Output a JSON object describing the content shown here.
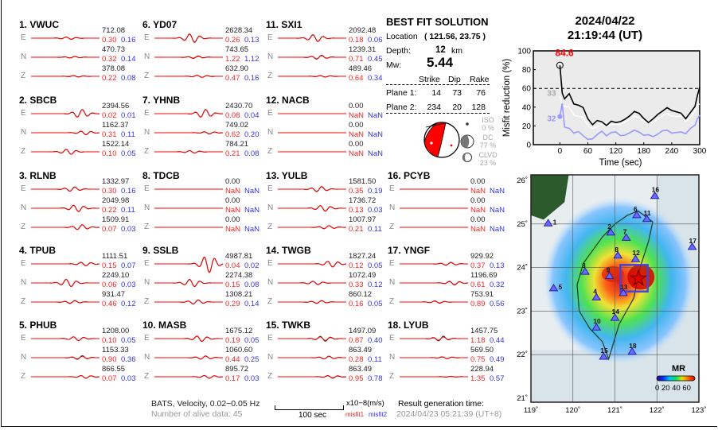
{
  "stations": [
    {
      "title": "1.  VWUC",
      "comps": [
        {
          "c": "E",
          "amp": "712.08",
          "m1": "0.30",
          "m2": "0.16"
        },
        {
          "c": "N",
          "amp": "470.73",
          "m1": "0.32",
          "m2": "0.14"
        },
        {
          "c": "Z",
          "amp": "378.08",
          "m1": "0.22",
          "m2": "0.08"
        }
      ]
    },
    {
      "title": "2.  SBCB",
      "comps": [
        {
          "c": "E",
          "amp": "2394.56",
          "m1": "0.02",
          "m2": "0.01"
        },
        {
          "c": "N",
          "amp": "1162.37",
          "m1": "0.31",
          "m2": "0.11"
        },
        {
          "c": "Z",
          "amp": "1522.14",
          "m1": "0.10",
          "m2": "0.05"
        }
      ]
    },
    {
      "title": "3.  RLNB",
      "comps": [
        {
          "c": "E",
          "amp": "1332.97",
          "m1": "0.30",
          "m2": "0.16"
        },
        {
          "c": "N",
          "amp": "2049.98",
          "m1": "0.22",
          "m2": "0.11"
        },
        {
          "c": "Z",
          "amp": "1509.91",
          "m1": "0.07",
          "m2": "0.03"
        }
      ]
    },
    {
      "title": "4.  TPUB",
      "comps": [
        {
          "c": "E",
          "amp": "1111.51",
          "m1": "0.15",
          "m2": "0.07"
        },
        {
          "c": "N",
          "amp": "2249.10",
          "m1": "0.06",
          "m2": "0.03"
        },
        {
          "c": "Z",
          "amp": "931.47",
          "m1": "0.46",
          "m2": "0.12"
        }
      ]
    },
    {
      "title": "5.  PHUB",
      "comps": [
        {
          "c": "E",
          "amp": "1208.00",
          "m1": "0.10",
          "m2": "0.05"
        },
        {
          "c": "N",
          "amp": "1153.33",
          "m1": "0.90",
          "m2": "0.36"
        },
        {
          "c": "Z",
          "amp": "866.55",
          "m1": "0.07",
          "m2": "0.03"
        }
      ]
    },
    {
      "title": "6.  YD07",
      "comps": [
        {
          "c": "E",
          "amp": "2628.34",
          "m1": "0.26",
          "m2": "0.13"
        },
        {
          "c": "N",
          "amp": "743.65",
          "m1": "1.22",
          "m2": "1.12"
        },
        {
          "c": "Z",
          "amp": "632.90",
          "m1": "0.47",
          "m2": "0.16"
        }
      ]
    },
    {
      "title": "7.  YHNB",
      "comps": [
        {
          "c": "E",
          "amp": "2430.70",
          "m1": "0.08",
          "m2": "0.04"
        },
        {
          "c": "N",
          "amp": "749.02",
          "m1": "0.62",
          "m2": "0.20"
        },
        {
          "c": "Z",
          "amp": "784.21",
          "m1": "0.21",
          "m2": "0.08"
        }
      ]
    },
    {
      "title": "8.  TDCB",
      "comps": [
        {
          "c": "E",
          "amp": "0.00",
          "m1": "NaN",
          "m2": "NaN"
        },
        {
          "c": "N",
          "amp": "0.00",
          "m1": "NaN",
          "m2": "NaN"
        },
        {
          "c": "Z",
          "amp": "0.00",
          "m1": "NaN",
          "m2": "NaN"
        }
      ]
    },
    {
      "title": "9.  SSLB",
      "comps": [
        {
          "c": "E",
          "amp": "4987.81",
          "m1": "0.04",
          "m2": "0.02"
        },
        {
          "c": "N",
          "amp": "2274.38",
          "m1": "0.15",
          "m2": "0.08"
        },
        {
          "c": "Z",
          "amp": "1308.21",
          "m1": "0.29",
          "m2": "0.14"
        }
      ]
    },
    {
      "title": "10. MASB",
      "comps": [
        {
          "c": "E",
          "amp": "1675.12",
          "m1": "0.19",
          "m2": "0.05"
        },
        {
          "c": "N",
          "amp": "1060.60",
          "m1": "0.44",
          "m2": "0.25"
        },
        {
          "c": "Z",
          "amp": "895.72",
          "m1": "0.17",
          "m2": "0.03"
        }
      ]
    },
    {
      "title": "11. SXI1",
      "comps": [
        {
          "c": "E",
          "amp": "2092.48",
          "m1": "0.18",
          "m2": "0.06"
        },
        {
          "c": "N",
          "amp": "1239.31",
          "m1": "0.71",
          "m2": "0.45"
        },
        {
          "c": "Z",
          "amp": "489.46",
          "m1": "0.64",
          "m2": "0.34"
        }
      ]
    },
    {
      "title": "12. NACB",
      "comps": [
        {
          "c": "E",
          "amp": "0.00",
          "m1": "NaN",
          "m2": "NaN"
        },
        {
          "c": "N",
          "amp": "0.00",
          "m1": "NaN",
          "m2": "NaN"
        },
        {
          "c": "Z",
          "amp": "0.00",
          "m1": "NaN",
          "m2": "NaN"
        }
      ]
    },
    {
      "title": "13. YULB",
      "comps": [
        {
          "c": "E",
          "amp": "1581.50",
          "m1": "0.35",
          "m2": "0.19"
        },
        {
          "c": "N",
          "amp": "1736.72",
          "m1": "0.13",
          "m2": "0.03"
        },
        {
          "c": "Z",
          "amp": "1007.97",
          "m1": "0.21",
          "m2": "0.11"
        }
      ]
    },
    {
      "title": "14. TWGB",
      "comps": [
        {
          "c": "E",
          "amp": "1827.24",
          "m1": "0.12",
          "m2": "0.05"
        },
        {
          "c": "N",
          "amp": "1072.49",
          "m1": "0.33",
          "m2": "0.12"
        },
        {
          "c": "Z",
          "amp": "860.12",
          "m1": "0.16",
          "m2": "0.05"
        }
      ]
    },
    {
      "title": "15. TWKB",
      "comps": [
        {
          "c": "E",
          "amp": "1497.09",
          "m1": "0.87",
          "m2": "0.40"
        },
        {
          "c": "N",
          "amp": "863.49",
          "m1": "0.28",
          "m2": "0.11"
        },
        {
          "c": "Z",
          "amp": "863.49",
          "m1": "0.95",
          "m2": "0.78"
        }
      ]
    },
    {
      "title": "16. PCYB",
      "comps": [
        {
          "c": "E",
          "amp": "0.00",
          "m1": "NaN",
          "m2": "NaN"
        },
        {
          "c": "N",
          "amp": "0.00",
          "m1": "NaN",
          "m2": "NaN"
        },
        {
          "c": "Z",
          "amp": "0.00",
          "m1": "NaN",
          "m2": "NaN"
        }
      ]
    },
    {
      "title": "17. YNGF",
      "comps": [
        {
          "c": "E",
          "amp": "929.92",
          "m1": "0.37",
          "m2": "0.13"
        },
        {
          "c": "N",
          "amp": "1196.69",
          "m1": "0.61",
          "m2": "0.32"
        },
        {
          "c": "Z",
          "amp": "753.91",
          "m1": "0.89",
          "m2": "0.56"
        }
      ]
    },
    {
      "title": "18. LYUB",
      "comps": [
        {
          "c": "E",
          "amp": "1457.75",
          "m1": "1.18",
          "m2": "0.44"
        },
        {
          "c": "N",
          "amp": "569.50",
          "m1": "0.75",
          "m2": "0.49"
        },
        {
          "c": "Z",
          "amp": "228.94",
          "m1": "1.35",
          "m2": "0.57"
        }
      ]
    }
  ],
  "footer": {
    "network": "BATS, Velocity, 0.02−0.05 Hz",
    "alive": "Number of alive data: 45",
    "scale_label": "100 sec",
    "unit": "x10−8(m/s)",
    "misfit1": "misfit1",
    "misfit2": "misfit2",
    "gen_label": "Result generation time:",
    "gen_time": "2024/04/23 05:21:39 (UT+8)"
  },
  "solution": {
    "title": "BEST FIT SOLUTION",
    "location_label": "Location",
    "location": "( 121.56,  23.75 )",
    "depth_label": "Depth:",
    "depth": "12",
    "depth_unit": "km",
    "mw_label": "Mw:",
    "mw": "5.44",
    "headers": [
      "Strike",
      "Dip",
      "Rake"
    ],
    "planes": [
      {
        "label": "Plane 1:",
        "strike": "14",
        "dip": "73",
        "rake": "76"
      },
      {
        "label": "Plane 2:",
        "strike": "234",
        "dip": "20",
        "rake": "128"
      }
    ],
    "iso_label": "ISO",
    "iso": "0  %",
    "dc_label": "DC",
    "dc": "77 %",
    "clvd_label": "CLVD",
    "clvd": "23 %"
  },
  "event": {
    "date": "2024/04/22",
    "time": "21:19:44  (UT)"
  },
  "chart_data": {
    "type": "line",
    "xlabel": "Time (sec)",
    "ylabel": "Misfit reduction (%)",
    "xlim": [
      -57,
      300
    ],
    "ylim": [
      0,
      100
    ],
    "xticks": [
      0,
      60,
      120,
      180,
      240,
      300
    ],
    "yticks": [
      0,
      20,
      40,
      60,
      80,
      100
    ],
    "threshold": 60,
    "peak_label": "84.6",
    "peak": {
      "x": 0,
      "y": 84.6
    },
    "label_white": "33",
    "label_blue": "32",
    "x": [
      0,
      5,
      10,
      20,
      30,
      40,
      50,
      60,
      70,
      80,
      90,
      100,
      110,
      120,
      130,
      140,
      150,
      160,
      170,
      180,
      190,
      200,
      210,
      220,
      230,
      240,
      250,
      260,
      270,
      280,
      290,
      295,
      300
    ],
    "series": [
      {
        "name": "best",
        "color": "#000000",
        "values": [
          84.6,
          55,
          48,
          52,
          45,
          42,
          38,
          30,
          22,
          25,
          22,
          22,
          25,
          22,
          27,
          28,
          30,
          33,
          35,
          28,
          22,
          30,
          33,
          35,
          37,
          38,
          35,
          32,
          30,
          35,
          40,
          50,
          63
        ]
      },
      {
        "name": "secondary",
        "color": "#ffffff",
        "values": [
          52,
          42,
          40,
          38,
          33,
          30,
          28,
          22,
          18,
          18,
          20,
          21,
          22,
          20,
          24,
          25,
          26,
          28,
          30,
          25,
          22,
          26,
          28,
          30,
          31,
          32,
          30,
          29,
          27,
          30,
          35,
          40,
          45
        ]
      },
      {
        "name": "tertiary",
        "color": "#9999ff",
        "values": [
          30,
          44,
          18,
          15,
          14,
          14,
          8,
          8,
          7,
          10,
          12,
          11,
          13,
          12,
          12,
          11,
          12,
          13,
          15,
          10,
          9,
          11,
          12,
          14,
          13,
          14,
          13,
          12,
          14,
          18,
          20,
          25,
          33
        ]
      }
    ]
  },
  "map": {
    "lon_ticks": [
      "119˚",
      "120˚",
      "121˚",
      "122˚",
      "123˚"
    ],
    "lat_ticks": [
      "26˚",
      "25˚",
      "24˚",
      "23˚",
      "22˚",
      "21˚"
    ],
    "colorbar_title": "MR",
    "colorbar_ticks": "0 20 40 60",
    "epicenter": {
      "lon": 121.56,
      "lat": 23.75
    },
    "stations": [
      {
        "n": "1",
        "lon": 119.41,
        "lat": 25.01
      },
      {
        "n": "2",
        "lon": 120.9,
        "lat": 24.8
      },
      {
        "n": "3",
        "lon": 120.29,
        "lat": 23.9
      },
      {
        "n": "4",
        "lon": 120.56,
        "lat": 23.31
      },
      {
        "n": "5",
        "lon": 119.54,
        "lat": 23.52
      },
      {
        "n": "6",
        "lon": 121.52,
        "lat": 25.2
      },
      {
        "n": "7",
        "lon": 121.27,
        "lat": 24.68
      },
      {
        "n": "8",
        "lon": 121.07,
        "lat": 24.27
      },
      {
        "n": "9",
        "lon": 120.87,
        "lat": 23.8
      },
      {
        "n": "10",
        "lon": 120.56,
        "lat": 22.62
      },
      {
        "n": "11",
        "lon": 121.76,
        "lat": 25.11
      },
      {
        "n": "12",
        "lon": 121.49,
        "lat": 24.19
      },
      {
        "n": "13",
        "lon": 121.2,
        "lat": 23.41
      },
      {
        "n": "14",
        "lon": 121.0,
        "lat": 22.84
      },
      {
        "n": "15",
        "lon": 120.73,
        "lat": 21.95
      },
      {
        "n": "16",
        "lon": 121.95,
        "lat": 25.64
      },
      {
        "n": "17",
        "lon": 122.84,
        "lat": 24.47
      },
      {
        "n": "18",
        "lon": 121.41,
        "lat": 22.06
      }
    ]
  }
}
